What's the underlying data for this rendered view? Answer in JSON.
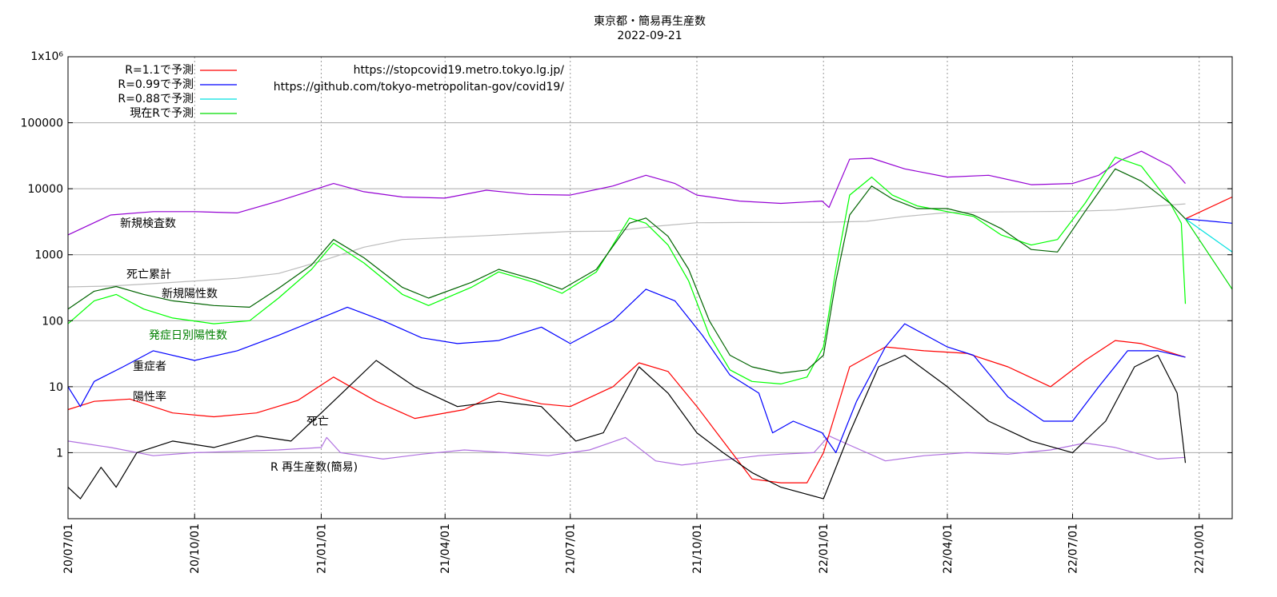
{
  "chart_data": {
    "type": "line",
    "title": "東京都・簡易再生産数",
    "subtitle": "2022-09-21",
    "y_scale": "log",
    "ylim": [
      0.1,
      1000000
    ],
    "y_ticks": [
      {
        "value": 1000000,
        "label": "1x10⁶"
      },
      {
        "value": 100000,
        "label": "100000"
      },
      {
        "value": 10000,
        "label": "10000"
      },
      {
        "value": 1000,
        "label": "1000"
      },
      {
        "value": 100,
        "label": "100"
      },
      {
        "value": 10,
        "label": "10"
      },
      {
        "value": 1,
        "label": "1"
      }
    ],
    "xlim": [
      "2020-07-01",
      "2022-10-25"
    ],
    "x_ticks": [
      {
        "value": "2020-07-01",
        "label": "20/07/01"
      },
      {
        "value": "2020-10-01",
        "label": "20/10/01"
      },
      {
        "value": "2021-01-01",
        "label": "21/01/01"
      },
      {
        "value": "2021-04-01",
        "label": "21/04/01"
      },
      {
        "value": "2021-07-01",
        "label": "21/07/01"
      },
      {
        "value": "2021-10-01",
        "label": "21/10/01"
      },
      {
        "value": "2022-01-01",
        "label": "22/01/01"
      },
      {
        "value": "2022-04-01",
        "label": "22/04/01"
      },
      {
        "value": "2022-07-01",
        "label": "22/07/01"
      },
      {
        "value": "2022-10-01",
        "label": "22/10/01"
      }
    ],
    "grid": true,
    "legend": {
      "placement": "top-left",
      "entries": [
        {
          "label": "R=1.1で予測",
          "color": "#ff0000"
        },
        {
          "label": "R=0.99で予測",
          "color": "#0000ff"
        },
        {
          "label": "R=0.88で予測",
          "color": "#00e0e0"
        },
        {
          "label": "現在Rで予測",
          "color": "#00dd00"
        }
      ]
    },
    "annotations": [
      "https://stopcovid19.metro.tokyo.lg.jp/",
      "https://github.com/tokyo-metropolitan-gov/covid19/"
    ],
    "series": [
      {
        "name": "新規検査数",
        "color": "#9400d3",
        "x": [
          "2020-07-01",
          "2020-08-01",
          "2020-09-01",
          "2020-10-01",
          "2020-11-01",
          "2020-12-01",
          "2021-01-10",
          "2021-02-01",
          "2021-03-01",
          "2021-04-01",
          "2021-05-01",
          "2021-06-01",
          "2021-07-01",
          "2021-08-01",
          "2021-08-25",
          "2021-09-15",
          "2021-10-01",
          "2021-11-01",
          "2021-12-01",
          "2021-12-31",
          "2022-01-05",
          "2022-01-20",
          "2022-02-05",
          "2022-03-01",
          "2022-04-01",
          "2022-05-01",
          "2022-06-01",
          "2022-07-01",
          "2022-07-20",
          "2022-08-05",
          "2022-08-20",
          "2022-09-10",
          "2022-09-21"
        ],
        "values": [
          2000,
          4000,
          4500,
          4500,
          4300,
          6500,
          12000,
          9000,
          7500,
          7200,
          9500,
          8200,
          8000,
          11000,
          16000,
          12000,
          8000,
          6500,
          6000,
          6500,
          5200,
          28000,
          29000,
          20000,
          15000,
          16000,
          11500,
          12000,
          16000,
          27000,
          37000,
          22000,
          12000
        ]
      },
      {
        "name": "死亡累計",
        "color": "#bbbbbb",
        "x": [
          "2020-07-01",
          "2020-08-01",
          "2020-09-01",
          "2020-10-01",
          "2020-11-01",
          "2020-12-01",
          "2021-01-01",
          "2021-02-01",
          "2021-03-01",
          "2021-04-01",
          "2021-05-01",
          "2021-06-01",
          "2021-07-01",
          "2021-08-01",
          "2021-09-01",
          "2021-10-01",
          "2021-11-01",
          "2021-12-01",
          "2022-01-01",
          "2022-02-01",
          "2022-03-01",
          "2022-04-01",
          "2022-05-01",
          "2022-06-01",
          "2022-07-01",
          "2022-08-01",
          "2022-09-01",
          "2022-09-21"
        ],
        "values": [
          325,
          335,
          365,
          400,
          440,
          520,
          800,
          1300,
          1700,
          1820,
          1950,
          2100,
          2250,
          2280,
          2700,
          3050,
          3080,
          3090,
          3100,
          3200,
          3800,
          4350,
          4450,
          4500,
          4550,
          4750,
          5500,
          5900
        ]
      },
      {
        "name": "新規陽性数",
        "color": "#006400",
        "x": [
          "2020-07-01",
          "2020-07-20",
          "2020-08-05",
          "2020-08-25",
          "2020-09-15",
          "2020-10-15",
          "2020-11-10",
          "2020-12-01",
          "2020-12-25",
          "2021-01-10",
          "2021-02-01",
          "2021-03-01",
          "2021-03-20",
          "2021-04-20",
          "2021-05-10",
          "2021-06-05",
          "2021-06-25",
          "2021-07-20",
          "2021-08-13",
          "2021-08-25",
          "2021-09-10",
          "2021-09-25",
          "2021-10-10",
          "2021-10-25",
          "2021-11-10",
          "2021-12-01",
          "2021-12-20",
          "2022-01-01",
          "2022-01-10",
          "2022-01-20",
          "2022-02-05",
          "2022-02-20",
          "2022-03-10",
          "2022-04-01",
          "2022-04-20",
          "2022-05-10",
          "2022-06-01",
          "2022-06-20",
          "2022-07-10",
          "2022-08-01",
          "2022-08-20",
          "2022-09-10",
          "2022-09-21"
        ],
        "values": [
          150,
          280,
          330,
          250,
          200,
          170,
          160,
          310,
          700,
          1700,
          900,
          320,
          220,
          380,
          600,
          420,
          300,
          600,
          3000,
          3600,
          1900,
          600,
          100,
          30,
          20,
          16,
          18,
          30,
          400,
          4000,
          11000,
          7000,
          5000,
          5000,
          4000,
          2500,
          1200,
          1100,
          4500,
          20000,
          13000,
          6000,
          3500
        ]
      },
      {
        "name": "発症日別陽性数",
        "color": "#00ff00",
        "x": [
          "2020-07-01",
          "2020-07-20",
          "2020-08-05",
          "2020-08-25",
          "2020-09-15",
          "2020-10-15",
          "2020-11-10",
          "2020-12-01",
          "2020-12-25",
          "2021-01-10",
          "2021-02-01",
          "2021-03-01",
          "2021-03-20",
          "2021-04-20",
          "2021-05-10",
          "2021-06-05",
          "2021-06-25",
          "2021-07-20",
          "2021-08-13",
          "2021-08-25",
          "2021-09-10",
          "2021-09-25",
          "2021-10-10",
          "2021-10-25",
          "2021-11-10",
          "2021-12-01",
          "2021-12-20",
          "2022-01-01",
          "2022-01-10",
          "2022-01-20",
          "2022-02-05",
          "2022-02-20",
          "2022-03-10",
          "2022-04-01",
          "2022-04-20",
          "2022-05-10",
          "2022-06-01",
          "2022-06-20",
          "2022-07-10",
          "2022-08-01",
          "2022-08-20",
          "2022-09-10",
          "2022-09-18",
          "2022-09-21"
        ],
        "values": [
          90,
          200,
          250,
          150,
          110,
          90,
          100,
          220,
          600,
          1500,
          750,
          250,
          170,
          320,
          550,
          380,
          260,
          550,
          3600,
          3000,
          1400,
          400,
          60,
          18,
          12,
          11,
          14,
          40,
          600,
          8000,
          15000,
          8000,
          5500,
          4500,
          3800,
          2000,
          1400,
          1700,
          6000,
          30000,
          22000,
          6000,
          3000,
          180
        ]
      },
      {
        "name": "重症者",
        "color": "#0000ff",
        "x": [
          "2020-07-01",
          "2020-07-10",
          "2020-07-20",
          "2020-08-10",
          "2020-09-01",
          "2020-10-01",
          "2020-11-01",
          "2020-12-01",
          "2021-01-20",
          "2021-02-15",
          "2021-03-15",
          "2021-04-10",
          "2021-05-10",
          "2021-06-10",
          "2021-07-01",
          "2021-08-01",
          "2021-08-25",
          "2021-09-15",
          "2021-10-05",
          "2021-10-25",
          "2021-11-15",
          "2021-11-25",
          "2021-12-10",
          "2021-12-31",
          "2022-01-10",
          "2022-01-25",
          "2022-02-15",
          "2022-03-01",
          "2022-04-01",
          "2022-04-20",
          "2022-05-15",
          "2022-06-10",
          "2022-07-01",
          "2022-07-20",
          "2022-08-10",
          "2022-09-01",
          "2022-09-21"
        ],
        "values": [
          10,
          5,
          12,
          20,
          35,
          25,
          35,
          60,
          160,
          100,
          55,
          45,
          50,
          80,
          45,
          100,
          300,
          200,
          60,
          15,
          8,
          2,
          3,
          2,
          1,
          6,
          40,
          90,
          40,
          30,
          7,
          3,
          3,
          10,
          35,
          35,
          28
        ]
      },
      {
        "name": "陽性率",
        "color": "#ff0000",
        "x": [
          "2020-07-01",
          "2020-07-20",
          "2020-08-15",
          "2020-09-15",
          "2020-10-15",
          "2020-11-15",
          "2020-12-15",
          "2021-01-10",
          "2021-02-10",
          "2021-03-10",
          "2021-04-15",
          "2021-05-10",
          "2021-06-10",
          "2021-07-01",
          "2021-08-01",
          "2021-08-20",
          "2021-09-10",
          "2021-10-01",
          "2021-10-20",
          "2021-11-10",
          "2021-12-01",
          "2021-12-20",
          "2022-01-01",
          "2022-01-20",
          "2022-02-15",
          "2022-03-15",
          "2022-04-15",
          "2022-05-15",
          "2022-06-15",
          "2022-07-10",
          "2022-08-01",
          "2022-08-20",
          "2022-09-21"
        ],
        "values": [
          4.5,
          6,
          6.5,
          4,
          3.5,
          4,
          6.2,
          14,
          6,
          3.3,
          4.5,
          8,
          5.5,
          5,
          10,
          23,
          17,
          5,
          1.5,
          0.4,
          0.35,
          0.35,
          1,
          20,
          40,
          35,
          32,
          20,
          10,
          25,
          50,
          45,
          28
        ]
      },
      {
        "name": "死亡",
        "color": "#000000",
        "x": [
          "2020-07-01",
          "2020-07-10",
          "2020-07-25",
          "2020-08-05",
          "2020-08-20",
          "2020-09-15",
          "2020-10-15",
          "2020-11-15",
          "2020-12-10",
          "2021-01-01",
          "2021-01-25",
          "2021-02-10",
          "2021-03-10",
          "2021-04-10",
          "2021-05-10",
          "2021-06-10",
          "2021-07-05",
          "2021-07-25",
          "2021-08-20",
          "2021-09-10",
          "2021-10-01",
          "2021-10-20",
          "2021-11-10",
          "2021-12-01",
          "2022-01-01",
          "2022-01-20",
          "2022-02-10",
          "2022-03-01",
          "2022-04-01",
          "2022-05-01",
          "2022-06-01",
          "2022-07-01",
          "2022-07-25",
          "2022-08-15",
          "2022-09-01",
          "2022-09-15",
          "2022-09-21"
        ],
        "values": [
          0.3,
          0.2,
          0.6,
          0.3,
          1,
          1.5,
          1.2,
          1.8,
          1.5,
          4,
          12,
          25,
          10,
          5,
          6,
          5,
          1.5,
          2,
          20,
          8,
          2,
          1,
          0.5,
          0.3,
          0.2,
          2,
          20,
          30,
          10,
          3,
          1.5,
          1,
          3,
          20,
          30,
          8,
          0.7
        ]
      },
      {
        "name": "R 再生産数(簡易)",
        "color": "#b070e0",
        "x": [
          "2020-07-01",
          "2020-08-01",
          "2020-09-01",
          "2020-10-01",
          "2020-11-01",
          "2020-12-01",
          "2021-01-01",
          "2021-01-05",
          "2021-01-15",
          "2021-02-15",
          "2021-03-15",
          "2021-04-15",
          "2021-05-15",
          "2021-06-15",
          "2021-07-15",
          "2021-08-10",
          "2021-09-01",
          "2021-09-20",
          "2021-10-15",
          "2021-11-15",
          "2021-12-01",
          "2021-12-25",
          "2022-01-05",
          "2022-01-20",
          "2022-02-15",
          "2022-03-15",
          "2022-04-15",
          "2022-05-15",
          "2022-06-15",
          "2022-07-10",
          "2022-08-01",
          "2022-09-01",
          "2022-09-21"
        ],
        "values": [
          1.5,
          1.2,
          0.9,
          1.0,
          1.05,
          1.1,
          1.2,
          1.7,
          1.0,
          0.8,
          0.95,
          1.1,
          1.0,
          0.9,
          1.1,
          1.7,
          0.75,
          0.65,
          0.75,
          0.9,
          0.95,
          1.0,
          1.8,
          1.3,
          0.75,
          0.9,
          1.0,
          0.95,
          1.1,
          1.4,
          1.2,
          0.8,
          0.85
        ]
      },
      {
        "name": "R=1.1で予測",
        "color": "#ff0000",
        "x": [
          "2022-09-21",
          "2022-10-25"
        ],
        "values": [
          3500,
          7500
        ]
      },
      {
        "name": "R=0.99で予測",
        "color": "#0000ff",
        "x": [
          "2022-09-21",
          "2022-10-25"
        ],
        "values": [
          3500,
          3000
        ]
      },
      {
        "name": "R=0.88で予測",
        "color": "#00e0e0",
        "x": [
          "2022-09-21",
          "2022-10-25"
        ],
        "values": [
          3500,
          1100
        ]
      },
      {
        "name": "現在Rで予測",
        "color": "#00dd00",
        "x": [
          "2022-09-21",
          "2022-10-25"
        ],
        "values": [
          3500,
          300
        ]
      }
    ],
    "series_labels": [
      {
        "text": "新規検査数",
        "color": "#000000"
      },
      {
        "text": "死亡累計",
        "color": "#000000"
      },
      {
        "text": "新規陽性数",
        "color": "#000000"
      },
      {
        "text": "発症日別陽性数",
        "color": "#008000"
      },
      {
        "text": "重症者",
        "color": "#000000"
      },
      {
        "text": "陽性率",
        "color": "#000000"
      },
      {
        "text": "死亡",
        "color": "#000000"
      },
      {
        "text": "R  再生産数(簡易)",
        "color": "#000000"
      }
    ]
  }
}
